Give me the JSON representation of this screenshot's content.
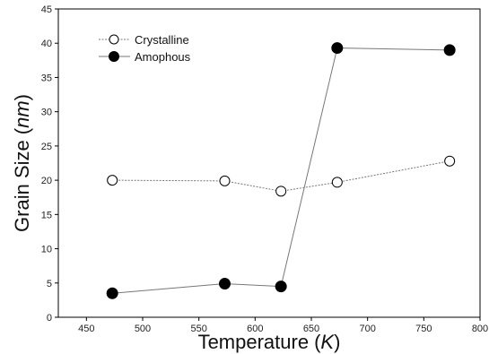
{
  "chart_data": {
    "type": "line",
    "xlabel": {
      "main": "Temperature",
      "open": "(",
      "unit": "K",
      "close": ")"
    },
    "ylabel": {
      "main": "Grain Size",
      "open": "(",
      "unit": "nm",
      "close": ")"
    },
    "xlim": [
      425,
      800
    ],
    "ylim": [
      0,
      45
    ],
    "xticks": [
      450,
      500,
      550,
      600,
      650,
      700,
      750,
      800
    ],
    "yticks": [
      0,
      5,
      10,
      15,
      20,
      25,
      30,
      35,
      40,
      45
    ],
    "legend_position": "top-left",
    "series": [
      {
        "name": "Crystalline",
        "marker": "open-circle",
        "color": "#000000",
        "x": [
          473,
          573,
          623,
          673,
          773
        ],
        "y": [
          20.0,
          19.9,
          18.4,
          19.7,
          22.8
        ]
      },
      {
        "name": "Amophous",
        "marker": "filled-circle",
        "color": "#000000",
        "x": [
          473,
          573,
          623,
          673,
          773
        ],
        "y": [
          3.5,
          4.9,
          4.5,
          39.3,
          39.0
        ]
      }
    ]
  }
}
